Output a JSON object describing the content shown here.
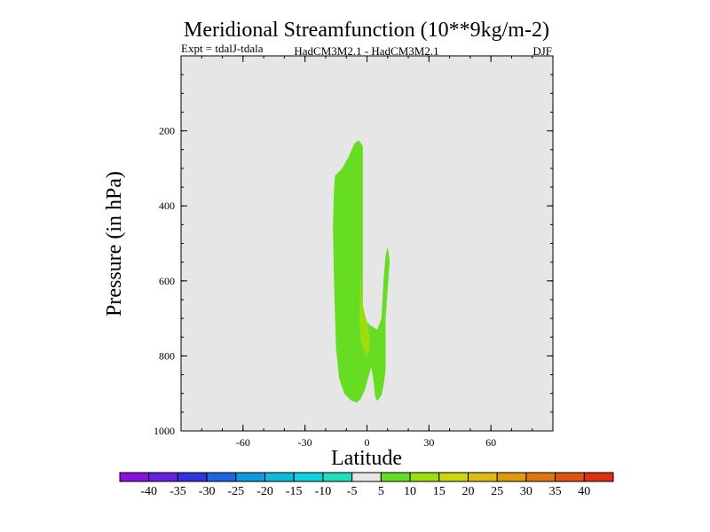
{
  "chart_data": {
    "type": "contour",
    "title": "Meridional Streamfunction (10**9kg/m-2)",
    "subtitle_left": "Expt = tdalJ-tdala",
    "subtitle_center": "HadCM3M2.1 - HadCM3M2.1",
    "subtitle_right": "DJF",
    "xlabel": "Latitude",
    "ylabel": "Pressure (in hPa)",
    "xlim": [
      -90,
      90
    ],
    "ylim": [
      1000,
      0
    ],
    "x_ticks": [
      -60,
      -30,
      0,
      30,
      60
    ],
    "x_tick_labels": [
      "-60",
      "-30",
      "0",
      "30",
      "60"
    ],
    "y_ticks": [
      200,
      400,
      600,
      800,
      1000
    ],
    "y_tick_labels": [
      "200",
      "400",
      "600",
      "800",
      "1000"
    ],
    "background_color": "#e6e6e6",
    "regions": [
      {
        "name": "contour-region-5-to-10",
        "level": "5 to 10",
        "color": "#66dd22",
        "points": [
          [
            -15.5,
            320
          ],
          [
            -12,
            300
          ],
          [
            -9,
            270
          ],
          [
            -6,
            233
          ],
          [
            -4,
            225
          ],
          [
            -3,
            232
          ],
          [
            -2,
            240
          ],
          [
            -2,
            700
          ],
          [
            0,
            710
          ],
          [
            2,
            720
          ],
          [
            5,
            730
          ],
          [
            7,
            700
          ],
          [
            8,
            600
          ],
          [
            9,
            530
          ],
          [
            10,
            510
          ],
          [
            11,
            545
          ],
          [
            9,
            700
          ],
          [
            9,
            840
          ],
          [
            8,
            880
          ],
          [
            7,
            905
          ],
          [
            5,
            920
          ],
          [
            4,
            910
          ],
          [
            3,
            860
          ],
          [
            2,
            830
          ],
          [
            1,
            850
          ],
          [
            -1,
            890
          ],
          [
            -3,
            915
          ],
          [
            -5,
            925
          ],
          [
            -8,
            918
          ],
          [
            -11,
            900
          ],
          [
            -13.5,
            860
          ],
          [
            -15,
            780
          ],
          [
            -16,
            600
          ],
          [
            -16.5,
            450
          ],
          [
            -16,
            360
          ]
        ]
      },
      {
        "name": "contour-region-10-to-15",
        "level": "10 to 15",
        "color": "#9ddd10",
        "points": [
          [
            -3,
            580
          ],
          [
            -2.5,
            650
          ],
          [
            -1,
            690
          ],
          [
            0.5,
            720
          ],
          [
            1.5,
            770
          ],
          [
            0.5,
            800
          ],
          [
            -1,
            795
          ],
          [
            -2,
            775
          ],
          [
            -3,
            760
          ],
          [
            -3.5,
            720
          ],
          [
            -3.5,
            640
          ]
        ]
      }
    ],
    "colorbar": {
      "colors": [
        "#8811dd",
        "#6622dd",
        "#3333dd",
        "#1e66dd",
        "#1199dd",
        "#10b8dd",
        "#10d0dd",
        "#22ddbb",
        "#e6e6e6",
        "#66dd22",
        "#9ddd10",
        "#ccd510",
        "#ddbb10",
        "#dd9910",
        "#dd7710",
        "#dd5510",
        "#dd3010"
      ],
      "labels": [
        "-40",
        "-35",
        "-30",
        "-25",
        "-20",
        "-15",
        "-10",
        "-5",
        "5",
        "10",
        "15",
        "20",
        "25",
        "30",
        "35",
        "40"
      ]
    }
  }
}
